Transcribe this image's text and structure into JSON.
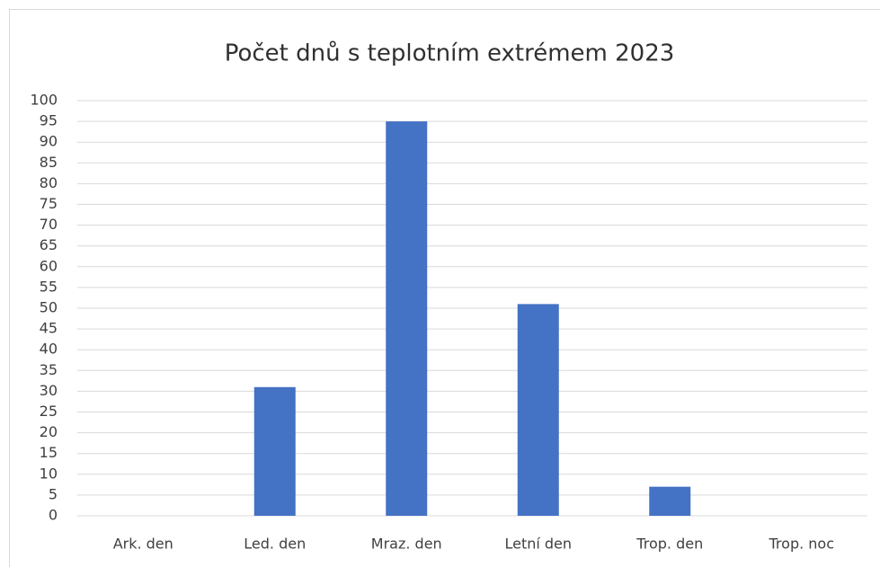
{
  "chart_data": {
    "type": "bar",
    "title": "Počet dnů s teplotním extrémem 2023",
    "categories": [
      "Ark. den",
      "Led. den",
      "Mraz. den",
      "Letní den",
      "Trop. den",
      "Trop. noc"
    ],
    "values": [
      0,
      31,
      95,
      51,
      7,
      0
    ],
    "color": "#4472c4",
    "ylim": [
      0,
      100
    ],
    "yticks": [
      0,
      5,
      10,
      15,
      20,
      25,
      30,
      35,
      40,
      45,
      50,
      55,
      60,
      65,
      70,
      75,
      80,
      85,
      90,
      95,
      100
    ],
    "grid": true
  }
}
